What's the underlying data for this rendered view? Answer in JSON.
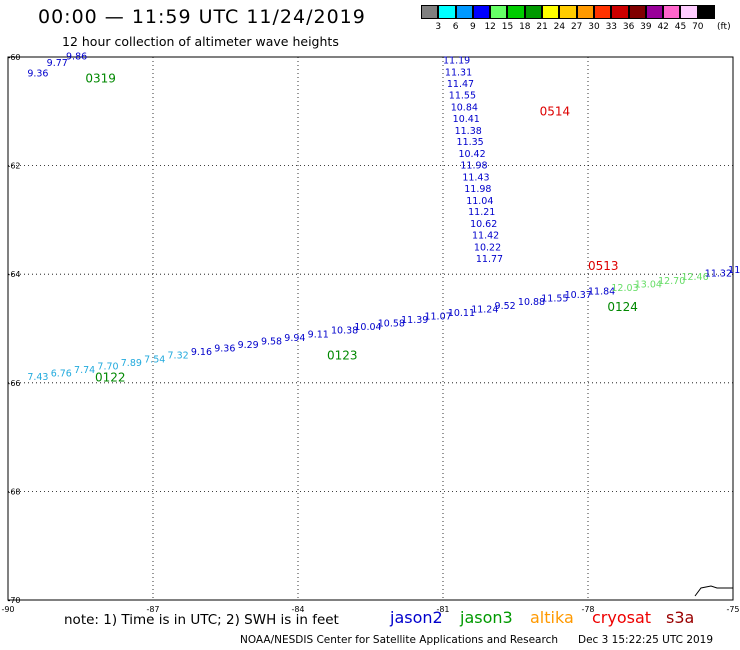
{
  "header": {
    "title": "00:00 — 11:59 UTC 11/24/2019",
    "subtitle": "12 hour collection of altimeter wave heights"
  },
  "legend": {
    "colors": [
      "#808080",
      "#00ffff",
      "#0099ff",
      "#0000ff",
      "#66ff66",
      "#00cc00",
      "#009900",
      "#ffff00",
      "#ffcc00",
      "#ff9900",
      "#ff3300",
      "#cc0000",
      "#800000",
      "#990099",
      "#ff66cc",
      "#ffccff",
      "#000000"
    ],
    "labels": [
      "3",
      "6",
      "9",
      "12",
      "15",
      "18",
      "21",
      "24",
      "27",
      "30",
      "33",
      "36",
      "39",
      "42",
      "45",
      "70",
      "(ft)"
    ]
  },
  "map": {
    "lat_labels": [
      "-60",
      "-62",
      "-64",
      "-66",
      "-68",
      "-70"
    ],
    "lon_labels": [
      "-90",
      "-87",
      "-84",
      "-81",
      "-78",
      "-75"
    ],
    "lat_range": [
      -70,
      -60
    ],
    "lon_range": [
      -90,
      -75
    ],
    "grid": "dotted"
  },
  "tracks": {
    "track_0319": {
      "values": [
        "9.36",
        "9.77",
        "9.86"
      ],
      "lons": [
        -89.6,
        -89.2,
        -88.8
      ],
      "lats": [
        -60.36,
        -60.17,
        -60.05
      ],
      "color": "#0000cc",
      "time_label": "0319",
      "time_lon": -88.4,
      "time_lat": -60.4,
      "time_color": "#008800"
    },
    "track_0514": {
      "values": [
        "11.19",
        "11.31",
        "11.47",
        "11.55",
        "10.84",
        "10.41",
        "11.38",
        "11.35",
        "10.42",
        "11.98",
        "11.43",
        "11.98",
        "11.04",
        "11.21",
        "10.62",
        "11.42",
        "10.22",
        "11.77"
      ],
      "lons": [
        -81.0,
        -80.96,
        -80.92,
        -80.88,
        -80.84,
        -80.8,
        -80.76,
        -80.72,
        -80.68,
        -80.64,
        -80.6,
        -80.56,
        -80.52,
        -80.48,
        -80.44,
        -80.4,
        -80.36,
        -80.32
      ],
      "lats": [
        -60.05,
        -60.27,
        -60.48,
        -60.69,
        -60.91,
        -61.12,
        -61.34,
        -61.55,
        -61.77,
        -61.98,
        -62.2,
        -62.41,
        -62.63,
        -62.84,
        -63.06,
        -63.27,
        -63.49,
        -63.7
      ],
      "color": "#0000cc",
      "time_label_top": "0514",
      "time_top_lon": -79.0,
      "time_top_lat": -61.0,
      "time_label_bottom": "0513",
      "time_bottom_lon": -78.0,
      "time_bottom_lat": -63.85,
      "time_color": "#dd0000"
    },
    "track_main": {
      "values": [
        {
          "v": "7.43",
          "c": "#22aadd"
        },
        {
          "v": "6.76",
          "c": "#22aadd"
        },
        {
          "v": "7.74",
          "c": "#22aadd"
        },
        {
          "v": "7.70",
          "c": "#22aadd"
        },
        {
          "v": "7.89",
          "c": "#22aadd"
        },
        {
          "v": "7.54",
          "c": "#22aadd"
        },
        {
          "v": "7.32",
          "c": "#22aadd"
        },
        {
          "v": "9.16",
          "c": "#0000cc"
        },
        {
          "v": "9.36",
          "c": "#0000cc"
        },
        {
          "v": "9.29",
          "c": "#0000cc"
        },
        {
          "v": "9.58",
          "c": "#0000cc"
        },
        {
          "v": "9.94",
          "c": "#0000cc"
        },
        {
          "v": "9.11",
          "c": "#0000cc"
        },
        {
          "v": "10.38",
          "c": "#0000cc"
        },
        {
          "v": "10.04",
          "c": "#0000cc"
        },
        {
          "v": "10.58",
          "c": "#0000cc"
        },
        {
          "v": "11.39",
          "c": "#0000cc"
        },
        {
          "v": "11.07",
          "c": "#0000cc"
        },
        {
          "v": "10.11",
          "c": "#0000cc"
        },
        {
          "v": "11.24",
          "c": "#0000cc"
        },
        {
          "v": "9.52",
          "c": "#0000cc"
        },
        {
          "v": "10.88",
          "c": "#0000cc"
        },
        {
          "v": "11.55",
          "c": "#0000cc"
        },
        {
          "v": "10.37",
          "c": "#0000cc"
        },
        {
          "v": "11.84",
          "c": "#0000cc"
        },
        {
          "v": "12.03",
          "c": "#66dd66"
        },
        {
          "v": "13.04",
          "c": "#66dd66"
        },
        {
          "v": "12.70",
          "c": "#66dd66"
        },
        {
          "v": "12.46",
          "c": "#66dd66"
        },
        {
          "v": "11.32",
          "c": "#0000cc"
        },
        {
          "v": "11",
          "c": "#0000cc"
        }
      ],
      "lon_start": -89.6,
      "lon_end": -75.1,
      "lat_start": -65.95,
      "lat_end": -63.98,
      "time_labels": [
        {
          "t": "0122",
          "lon": -88.2,
          "lat": -65.9
        },
        {
          "t": "0123",
          "lon": -83.4,
          "lat": -65.5
        },
        {
          "t": "0124",
          "lon": -77.6,
          "lat": -64.6
        }
      ],
      "time_color": "#008800"
    },
    "antarctic_coast": "coastline"
  },
  "footer": {
    "note": "note: 1) Time is in UTC; 2) SWH is in feet",
    "satellites": [
      {
        "name": "jason2",
        "color": "#0000cc"
      },
      {
        "name": "jason3",
        "color": "#009900"
      },
      {
        "name": "altika",
        "color": "#ff9900"
      },
      {
        "name": "cryosat",
        "color": "#ee0000"
      },
      {
        "name": "s3a",
        "color": "#990000"
      }
    ],
    "credit": "NOAA/NESDIS Center for Satellite Applications and Research",
    "timestamp": "Dec  3 15:22:25 UTC 2019"
  }
}
